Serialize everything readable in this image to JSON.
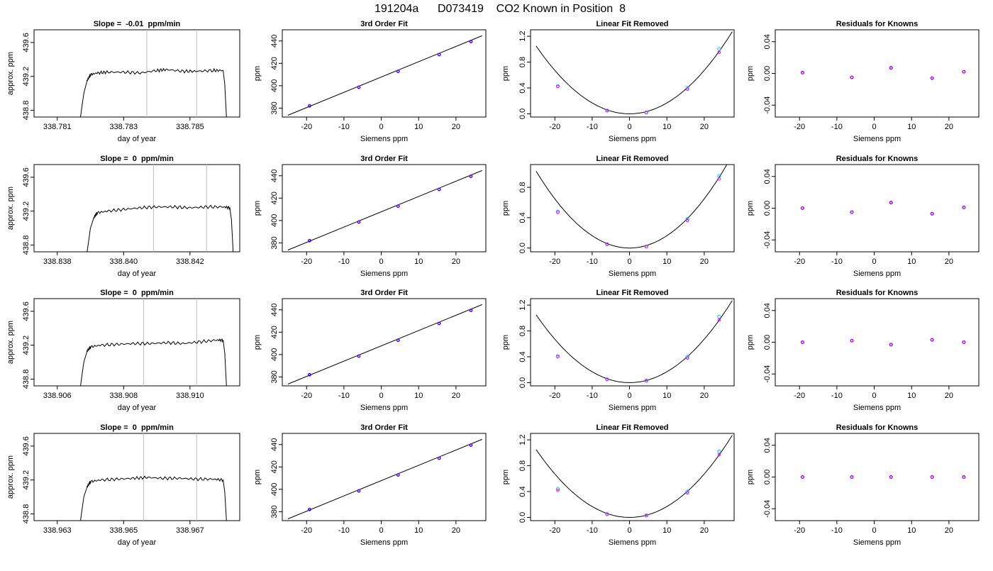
{
  "page": {
    "title": "191204a      D073419    CO2 Known in Position  8"
  },
  "panel_titles": {
    "fit": "3rd Order Fit",
    "linear": "Linear Fit Removed",
    "resid": "Residuals for Knowns"
  },
  "axis_labels": {
    "day_of_year": "day of year",
    "approx_ppm": "approx. ppm",
    "ppm": "ppm",
    "siemens_ppm": "Siemens ppm"
  },
  "colors": {
    "line": "#000000",
    "vline": "#bebebe",
    "point_a": "#00bfff",
    "point_b": "#ff00ff",
    "point_c": "#0000ff"
  },
  "chart_data": [
    {
      "type": "line",
      "row": 1,
      "panel": "trace",
      "title": "Slope =  -0.01  ppm/min",
      "xlabel": "day of year",
      "ylabel": "approx. ppm",
      "xlim": [
        338.7803,
        338.7865
      ],
      "ylim": [
        438.72,
        439.75
      ],
      "xticks": [
        338.781,
        338.783,
        338.785
      ],
      "xtick_labels": [
        "338.781",
        "338.783",
        "338.785"
      ],
      "yticks": [
        438.8,
        439.2,
        439.6
      ],
      "ytick_labels": [
        "438.8",
        "439.2",
        "439.6"
      ],
      "vlines": [
        338.7837,
        338.7852
      ],
      "x": [
        338.7817,
        338.7818,
        338.7819,
        338.782,
        338.7822,
        338.7825,
        338.783,
        338.7835,
        338.784,
        338.7843,
        338.7848,
        338.7852,
        338.7857,
        338.786,
        338.78605,
        338.7861
      ],
      "y": [
        438.72,
        439.0,
        439.15,
        439.22,
        439.24,
        439.25,
        439.25,
        439.24,
        439.27,
        439.28,
        439.26,
        439.26,
        439.27,
        439.27,
        439.1,
        438.72
      ]
    },
    {
      "type": "scatter",
      "row": 1,
      "panel": "fit",
      "title": "3rd Order Fit",
      "xlabel": "Siemens ppm",
      "ylabel": "ppm",
      "xlim": [
        -26.5,
        28
      ],
      "ylim": [
        372,
        450
      ],
      "xticks": [
        -20,
        -10,
        0,
        10,
        20
      ],
      "xtick_labels": [
        "-20",
        "-10",
        "0",
        "10",
        "20"
      ],
      "yticks": [
        380,
        400,
        420,
        440
      ],
      "ytick_labels": [
        "380",
        "400",
        "420",
        "440"
      ],
      "x": [
        -19.2,
        -6.0,
        4.5,
        15.5,
        24.0
      ],
      "y": [
        382,
        398.6,
        412.8,
        427.8,
        439.5
      ],
      "curve": {
        "x": [
          -25,
          27
        ],
        "y": [
          373.6,
          444.7
        ]
      }
    },
    {
      "type": "scatter",
      "row": 1,
      "panel": "linear",
      "title": "Linear Fit Removed",
      "xlabel": "Siemens ppm",
      "ylabel": "ppm",
      "xlim": [
        -26.5,
        28
      ],
      "ylim": [
        -0.05,
        1.3
      ],
      "xticks": [
        -20,
        -10,
        0,
        10,
        20
      ],
      "xtick_labels": [
        "-20",
        "-10",
        "0",
        "10",
        "20"
      ],
      "yticks": [
        0.0,
        0.4,
        0.8,
        1.2
      ],
      "ytick_labels": [
        "0.0",
        "0.4",
        "0.8",
        "1.2"
      ],
      "x": [
        -19.2,
        -6.0,
        4.5,
        15.5,
        24.0
      ],
      "y": [
        0.43,
        0.05,
        0.02,
        0.4,
        1.0
      ],
      "y_alt": [
        0.42,
        0.05,
        0.02,
        0.38,
        0.95
      ],
      "curve_coef": 0.00168
    },
    {
      "type": "scatter",
      "row": 1,
      "panel": "resid",
      "title": "Residuals for Knowns",
      "xlabel": "Siemens ppm",
      "ylabel": "ppm",
      "xlim": [
        -26.5,
        28
      ],
      "ylim": [
        -0.055,
        0.055
      ],
      "xticks": [
        -20,
        -10,
        0,
        10,
        20
      ],
      "xtick_labels": [
        "-20",
        "-10",
        "0",
        "10",
        "20"
      ],
      "yticks": [
        -0.04,
        0.0,
        0.04
      ],
      "ytick_labels": [
        "-0.04",
        "0.00",
        "0.04"
      ],
      "x": [
        -19.2,
        -6.0,
        4.5,
        15.5,
        24.0
      ],
      "y": [
        0.001,
        -0.005,
        0.007,
        -0.006,
        0.002
      ]
    },
    {
      "type": "line",
      "row": 2,
      "panel": "trace",
      "title": "Slope =  0  ppm/min",
      "xlabel": "day of year",
      "ylabel": "approx. ppm",
      "xlim": [
        338.8373,
        338.8435
      ],
      "ylim": [
        438.72,
        439.75
      ],
      "xticks": [
        338.838,
        338.84,
        338.842
      ],
      "xtick_labels": [
        "338.838",
        "338.840",
        "338.842"
      ],
      "yticks": [
        438.8,
        439.2,
        439.6
      ],
      "ytick_labels": [
        "438.8",
        "439.2",
        "439.6"
      ],
      "vlines": [
        338.8409,
        338.8425
      ],
      "x": [
        338.8389,
        338.839,
        338.8391,
        338.8392,
        338.8395,
        338.84,
        338.8405,
        338.841,
        338.8415,
        338.842,
        338.8425,
        338.843,
        338.8432,
        338.84325,
        338.8433
      ],
      "y": [
        438.72,
        439.0,
        439.12,
        439.18,
        439.2,
        439.22,
        439.24,
        439.25,
        439.25,
        439.24,
        439.25,
        439.25,
        439.24,
        439.1,
        438.72
      ]
    },
    {
      "type": "scatter",
      "row": 2,
      "panel": "fit",
      "title": "3rd Order Fit",
      "xlabel": "Siemens ppm",
      "ylabel": "ppm",
      "xlim": [
        -26.5,
        28
      ],
      "ylim": [
        372,
        450
      ],
      "xticks": [
        -20,
        -10,
        0,
        10,
        20
      ],
      "xtick_labels": [
        "-20",
        "-10",
        "0",
        "10",
        "20"
      ],
      "yticks": [
        380,
        400,
        420,
        440
      ],
      "ytick_labels": [
        "380",
        "400",
        "420",
        "440"
      ],
      "x": [
        -19.2,
        -6.0,
        4.5,
        15.5,
        24.0
      ],
      "y": [
        382,
        398.6,
        412.8,
        427.8,
        439.5
      ],
      "curve": {
        "x": [
          -25,
          27
        ],
        "y": [
          373.6,
          444.7
        ]
      }
    },
    {
      "type": "scatter",
      "row": 2,
      "panel": "linear",
      "title": "Linear Fit Removed",
      "xlabel": "Siemens ppm",
      "ylabel": "ppm",
      "xlim": [
        -26.5,
        28
      ],
      "ylim": [
        -0.05,
        1.1
      ],
      "xticks": [
        -20,
        -10,
        0,
        10,
        20
      ],
      "xtick_labels": [
        "-20",
        "-10",
        "0",
        "10",
        "20"
      ],
      "yticks": [
        0.0,
        0.4,
        0.8
      ],
      "ytick_labels": [
        "0.0",
        "0.4",
        "0.8"
      ],
      "x": [
        -19.2,
        -6.0,
        4.5,
        15.5,
        24.0
      ],
      "y": [
        0.48,
        0.05,
        0.02,
        0.38,
        0.95
      ],
      "y_alt": [
        0.47,
        0.05,
        0.02,
        0.36,
        0.91
      ],
      "curve_coef": 0.00162
    },
    {
      "type": "scatter",
      "row": 2,
      "panel": "resid",
      "title": "Residuals for Knowns",
      "xlabel": "Siemens ppm",
      "ylabel": "ppm",
      "xlim": [
        -26.5,
        28
      ],
      "ylim": [
        -0.055,
        0.055
      ],
      "xticks": [
        -20,
        -10,
        0,
        10,
        20
      ],
      "xtick_labels": [
        "-20",
        "-10",
        "0",
        "10",
        "20"
      ],
      "yticks": [
        -0.04,
        0.0,
        0.04
      ],
      "ytick_labels": [
        "-0.04",
        "0.00",
        "0.04"
      ],
      "x": [
        -19.2,
        -6.0,
        4.5,
        15.5,
        24.0
      ],
      "y": [
        0.0,
        -0.005,
        0.007,
        -0.007,
        0.001
      ]
    },
    {
      "type": "line",
      "row": 3,
      "panel": "trace",
      "title": "Slope =  0  ppm/min",
      "xlabel": "day of year",
      "ylabel": "approx. ppm",
      "xlim": [
        338.9053,
        338.9115
      ],
      "ylim": [
        438.72,
        439.75
      ],
      "xticks": [
        338.906,
        338.908,
        338.91
      ],
      "xtick_labels": [
        "338.906",
        "338.908",
        "338.910"
      ],
      "yticks": [
        438.8,
        439.2,
        439.6
      ],
      "ytick_labels": [
        "438.8",
        "439.2",
        "439.6"
      ],
      "vlines": [
        338.9086,
        338.9102
      ],
      "x": [
        338.9067,
        338.9068,
        338.9069,
        338.907,
        338.9073,
        338.9078,
        338.9083,
        338.9088,
        338.9093,
        338.9098,
        338.9103,
        338.9108,
        338.911,
        338.91105,
        338.9111
      ],
      "y": [
        438.72,
        439.0,
        439.13,
        439.18,
        439.2,
        439.21,
        439.22,
        439.22,
        439.23,
        439.22,
        439.24,
        439.26,
        439.26,
        439.1,
        438.72
      ]
    },
    {
      "type": "scatter",
      "row": 3,
      "panel": "fit",
      "title": "3rd Order Fit",
      "xlabel": "Siemens ppm",
      "ylabel": "ppm",
      "xlim": [
        -26.5,
        28
      ],
      "ylim": [
        372,
        450
      ],
      "xticks": [
        -20,
        -10,
        0,
        10,
        20
      ],
      "xtick_labels": [
        "-20",
        "-10",
        "0",
        "10",
        "20"
      ],
      "yticks": [
        380,
        400,
        420,
        440
      ],
      "ytick_labels": [
        "380",
        "400",
        "420",
        "440"
      ],
      "x": [
        -19.2,
        -6.0,
        4.5,
        15.5,
        24.0
      ],
      "y": [
        382,
        398.6,
        412.8,
        427.8,
        439.5
      ],
      "curve": {
        "x": [
          -25,
          27
        ],
        "y": [
          373.6,
          444.7
        ]
      }
    },
    {
      "type": "scatter",
      "row": 3,
      "panel": "linear",
      "title": "Linear Fit Removed",
      "xlabel": "Siemens ppm",
      "ylabel": "ppm",
      "xlim": [
        -26.5,
        28
      ],
      "ylim": [
        -0.05,
        1.3
      ],
      "xticks": [
        -20,
        -10,
        0,
        10,
        20
      ],
      "xtick_labels": [
        "-20",
        "-10",
        "0",
        "10",
        "20"
      ],
      "yticks": [
        0.0,
        0.4,
        0.8,
        1.2
      ],
      "ytick_labels": [
        "0.0",
        "0.4",
        "0.8",
        "1.2"
      ],
      "x": [
        -19.2,
        -6.0,
        4.5,
        15.5,
        24.0
      ],
      "y": [
        0.41,
        0.05,
        0.03,
        0.4,
        1.02
      ],
      "y_alt": [
        0.4,
        0.05,
        0.03,
        0.38,
        0.97
      ],
      "curve_coef": 0.00168
    },
    {
      "type": "scatter",
      "row": 3,
      "panel": "resid",
      "title": "Residuals for Knowns",
      "xlabel": "Siemens ppm",
      "ylabel": "ppm",
      "xlim": [
        -26.5,
        28
      ],
      "ylim": [
        -0.055,
        0.055
      ],
      "xticks": [
        -20,
        -10,
        0,
        10,
        20
      ],
      "xtick_labels": [
        "-20",
        "-10",
        "0",
        "10",
        "20"
      ],
      "yticks": [
        -0.04,
        0.0,
        0.04
      ],
      "ytick_labels": [
        "-0.04",
        "0.00",
        "0.04"
      ],
      "x": [
        -19.2,
        -6.0,
        4.5,
        15.5,
        24.0
      ],
      "y": [
        0.0,
        0.002,
        -0.003,
        0.003,
        0.0
      ]
    },
    {
      "type": "line",
      "row": 4,
      "panel": "trace",
      "title": "Slope =  0  ppm/min",
      "xlabel": "day of year",
      "ylabel": "approx. ppm",
      "xlim": [
        338.9623,
        338.9685
      ],
      "ylim": [
        438.72,
        439.75
      ],
      "xticks": [
        338.963,
        338.965,
        338.967
      ],
      "xtick_labels": [
        "338.963",
        "338.965",
        "338.967"
      ],
      "yticks": [
        438.8,
        439.2,
        439.6
      ],
      "ytick_labels": [
        "438.8",
        "439.2",
        "439.6"
      ],
      "vlines": [
        338.9656,
        338.9672
      ],
      "x": [
        338.9637,
        338.9638,
        338.9639,
        338.964,
        338.9643,
        338.9648,
        338.9653,
        338.9657,
        338.9662,
        338.9667,
        338.9672,
        338.9677,
        338.968,
        338.96805,
        338.9681
      ],
      "y": [
        438.72,
        439.0,
        439.12,
        439.18,
        439.2,
        439.21,
        439.22,
        439.23,
        439.22,
        439.22,
        439.21,
        439.21,
        439.2,
        439.05,
        438.72
      ]
    },
    {
      "type": "scatter",
      "row": 4,
      "panel": "fit",
      "title": "3rd Order Fit",
      "xlabel": "Siemens ppm",
      "ylabel": "ppm",
      "xlim": [
        -26.5,
        28
      ],
      "ylim": [
        372,
        450
      ],
      "xticks": [
        -20,
        -10,
        0,
        10,
        20
      ],
      "xtick_labels": [
        "-20",
        "-10",
        "0",
        "10",
        "20"
      ],
      "yticks": [
        380,
        400,
        420,
        440
      ],
      "ytick_labels": [
        "380",
        "400",
        "420",
        "440"
      ],
      "x": [
        -19.2,
        -6.0,
        4.5,
        15.5,
        24.0
      ],
      "y": [
        382,
        398.6,
        412.8,
        427.8,
        439.5
      ],
      "curve": {
        "x": [
          -25,
          27
        ],
        "y": [
          373.6,
          444.7
        ]
      }
    },
    {
      "type": "scatter",
      "row": 4,
      "panel": "linear",
      "title": "Linear Fit Removed",
      "xlabel": "Siemens ppm",
      "ylabel": "ppm",
      "xlim": [
        -26.5,
        28
      ],
      "ylim": [
        -0.05,
        1.3
      ],
      "xticks": [
        -20,
        -10,
        0,
        10,
        20
      ],
      "xtick_labels": [
        "-20",
        "-10",
        "0",
        "10",
        "20"
      ],
      "yticks": [
        0.0,
        0.4,
        0.8,
        1.2
      ],
      "ytick_labels": [
        "0.0",
        "0.4",
        "0.8",
        "1.2"
      ],
      "x": [
        -19.2,
        -6.0,
        4.5,
        15.5,
        24.0
      ],
      "y": [
        0.44,
        0.05,
        0.03,
        0.4,
        1.02
      ],
      "y_alt": [
        0.42,
        0.05,
        0.03,
        0.38,
        0.97
      ],
      "curve_coef": 0.00168
    },
    {
      "type": "scatter",
      "row": 4,
      "panel": "resid",
      "title": "Residuals for Knowns",
      "xlabel": "Siemens ppm",
      "ylabel": "ppm",
      "xlim": [
        -26.5,
        28
      ],
      "ylim": [
        -0.055,
        0.055
      ],
      "xticks": [
        -20,
        -10,
        0,
        10,
        20
      ],
      "xtick_labels": [
        "-20",
        "-10",
        "0",
        "10",
        "20"
      ],
      "yticks": [
        -0.04,
        0.0,
        0.04
      ],
      "ytick_labels": [
        "-0.04",
        "0.00",
        "0.04"
      ],
      "x": [
        -19.2,
        -6.0,
        4.5,
        15.5,
        24.0
      ],
      "y": [
        0.0,
        0.0,
        0.0,
        0.0,
        0.0
      ]
    }
  ]
}
